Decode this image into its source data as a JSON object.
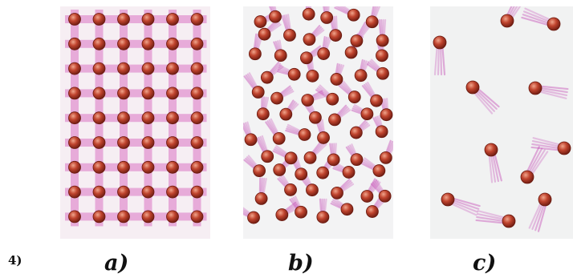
{
  "item_number": "4)",
  "panels": [
    {
      "id": "a",
      "label": "a)",
      "state": "solid",
      "arrangement": "ordered-lattice",
      "rows": 9,
      "columns": 6
    },
    {
      "id": "b",
      "label": "b)",
      "state": "liquid",
      "arrangement": "close-packed-disordered"
    },
    {
      "id": "c",
      "label": "c)",
      "state": "gas",
      "arrangement": "sparse-random"
    }
  ],
  "colors": {
    "particle": "#c0442e",
    "particle_highlight": "#f0a58c",
    "particle_outline": "#6a1a10",
    "motion_trail": "#c650b8",
    "lattice_bond": "#d24fb4",
    "label": "#111111"
  },
  "icons": {
    "particle": "particle-icon",
    "motion_trail": "motion-trail-icon",
    "lattice_bond": "lattice-bond-icon"
  }
}
